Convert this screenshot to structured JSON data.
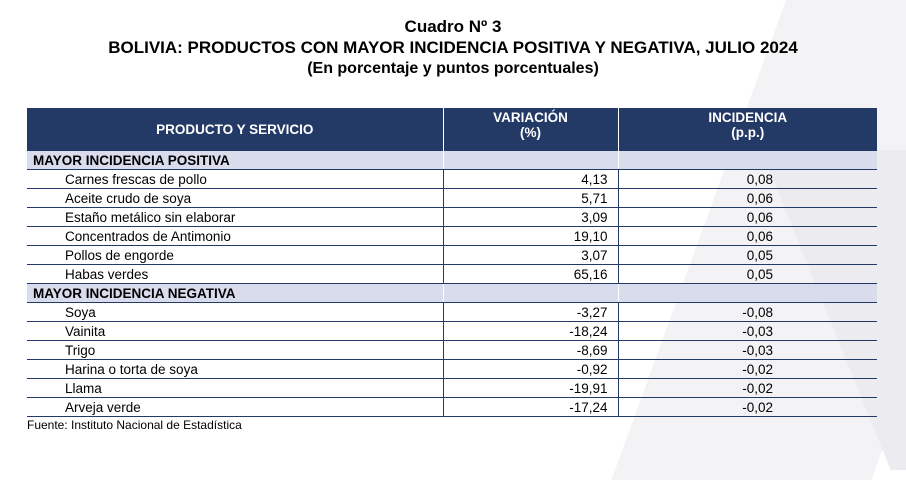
{
  "header": {
    "label": "Cuadro Nº 3",
    "title": "BOLIVIA: PRODUCTOS CON MAYOR INCIDENCIA POSITIVA Y NEGATIVA, JULIO 2024",
    "subtitle": "(En porcentaje y puntos porcentuales)"
  },
  "table": {
    "columns": {
      "product": "PRODUCTO Y SERVICIO",
      "variation_l1": "VARIACIÓN",
      "variation_l2": "(%)",
      "incidence_l1": "INCIDENCIA",
      "incidence_l2": "(p.p.)"
    },
    "positive": {
      "label": "MAYOR INCIDENCIA POSITIVA",
      "rows": [
        {
          "name": "Carnes frescas de pollo",
          "variation": "4,13",
          "incidence": "0,08"
        },
        {
          "name": "Aceite crudo de soya",
          "variation": "5,71",
          "incidence": "0,06"
        },
        {
          "name": "Estaño metálico sin elaborar",
          "variation": "3,09",
          "incidence": "0,06"
        },
        {
          "name": "Concentrados de Antimonio",
          "variation": "19,10",
          "incidence": "0,06"
        },
        {
          "name": "Pollos de engorde",
          "variation": "3,07",
          "incidence": "0,05"
        },
        {
          "name": "Habas verdes",
          "variation": "65,16",
          "incidence": "0,05"
        }
      ]
    },
    "negative": {
      "label": "MAYOR INCIDENCIA NEGATIVA",
      "rows": [
        {
          "name": "Soya",
          "variation": "-3,27",
          "incidence": "-0,08"
        },
        {
          "name": "Vainita",
          "variation": "-18,24",
          "incidence": "-0,03"
        },
        {
          "name": "Trigo",
          "variation": "-8,69",
          "incidence": "-0,03"
        },
        {
          "name": "Harina o torta de soya",
          "variation": "-0,92",
          "incidence": "-0,02"
        },
        {
          "name": "Llama",
          "variation": "-19,91",
          "incidence": "-0,02"
        },
        {
          "name": "Arveja verde",
          "variation": "-17,24",
          "incidence": "-0,02"
        }
      ]
    }
  },
  "footer": {
    "source": "Fuente: Instituto Nacional de Estadística"
  }
}
